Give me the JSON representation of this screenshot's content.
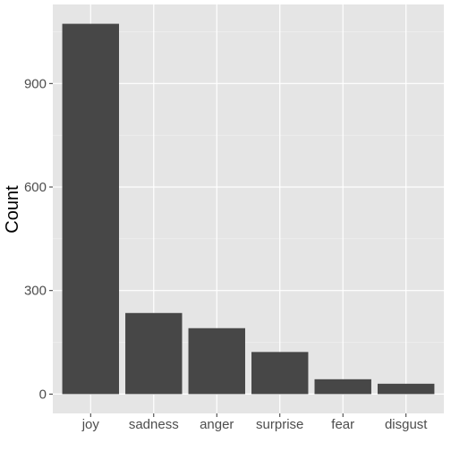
{
  "chart_data": {
    "type": "bar",
    "title": "",
    "xlabel": "",
    "ylabel": "Count",
    "categories": [
      "joy",
      "sadness",
      "anger",
      "surprise",
      "fear",
      "disgust"
    ],
    "values": [
      1073,
      235,
      191,
      122,
      43,
      30
    ],
    "ylim": [
      -56,
      1129
    ],
    "yticks": [
      0,
      300,
      600,
      900
    ],
    "ytick_labels": [
      "0",
      "300",
      "600",
      "900"
    ],
    "grid": true,
    "legend": "none",
    "colors": {
      "bar": "#474747",
      "panel": "#e5e5e5",
      "grid_major": "#ffffff",
      "grid_minor": "#f2f2f2",
      "tick_label": "#4d4d4d",
      "tick_mark": "#333333"
    }
  }
}
